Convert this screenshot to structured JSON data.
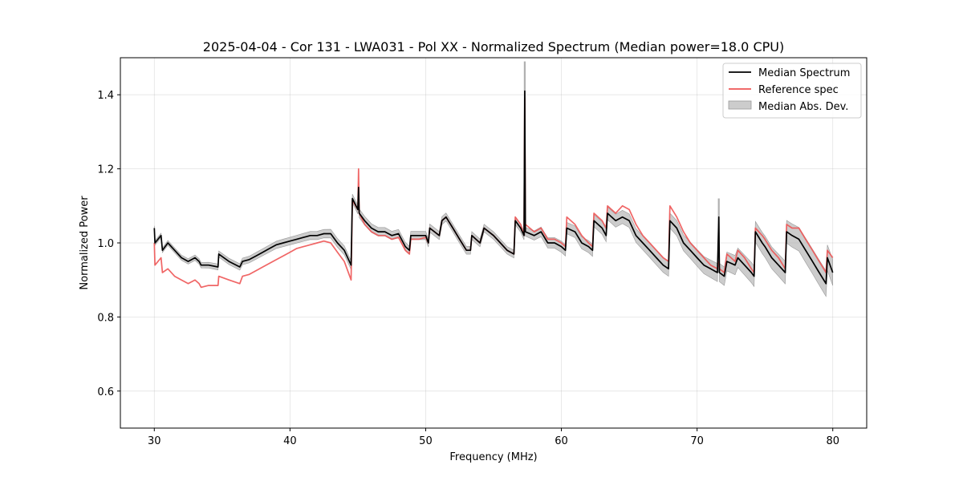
{
  "chart_data": {
    "type": "line",
    "title": "2025-04-04 - Cor 131 - LWA031 - Pol XX - Normalized Spectrum (Median power=18.0 CPU)",
    "xlabel": "Frequency (MHz)",
    "ylabel": "Normalized Power",
    "xlim": [
      27.5,
      82.5
    ],
    "ylim": [
      0.5,
      1.5
    ],
    "x_ticks": [
      30,
      40,
      50,
      60,
      70,
      80
    ],
    "x_tick_labels": [
      "30",
      "40",
      "50",
      "60",
      "70",
      "80"
    ],
    "y_ticks": [
      0.6,
      0.8,
      1.0,
      1.2,
      1.4
    ],
    "y_tick_labels": [
      "0.6",
      "0.8",
      "1.0",
      "1.2",
      "1.4"
    ],
    "grid": true,
    "legend": {
      "placement": "top-right",
      "entries": [
        {
          "label": "Median Spectrum",
          "color": "#000000",
          "kind": "line"
        },
        {
          "label": "Reference spec",
          "color": "#ee5555",
          "kind": "line"
        },
        {
          "label": "Median Abs. Dev.",
          "color": "#b0b0b0",
          "kind": "band"
        }
      ]
    },
    "series": [
      {
        "name": "Median Spectrum",
        "color": "#000000",
        "points": [
          [
            30.0,
            1.04
          ],
          [
            30.05,
            1.0
          ],
          [
            30.5,
            1.02
          ],
          [
            30.6,
            0.98
          ],
          [
            31.0,
            1.0
          ],
          [
            31.5,
            0.98
          ],
          [
            32.0,
            0.96
          ],
          [
            32.5,
            0.95
          ],
          [
            33.0,
            0.96
          ],
          [
            33.3,
            0.95
          ],
          [
            33.45,
            0.94
          ],
          [
            34.0,
            0.94
          ],
          [
            34.7,
            0.935
          ],
          [
            34.75,
            0.97
          ],
          [
            35.5,
            0.95
          ],
          [
            36.3,
            0.935
          ],
          [
            36.5,
            0.95
          ],
          [
            37.0,
            0.955
          ],
          [
            37.5,
            0.965
          ],
          [
            38.0,
            0.975
          ],
          [
            38.5,
            0.985
          ],
          [
            39.0,
            0.995
          ],
          [
            39.5,
            1.0
          ],
          [
            40.0,
            1.005
          ],
          [
            40.5,
            1.01
          ],
          [
            41.0,
            1.015
          ],
          [
            41.5,
            1.02
          ],
          [
            42.0,
            1.02
          ],
          [
            42.5,
            1.025
          ],
          [
            43.0,
            1.025
          ],
          [
            43.5,
            1.0
          ],
          [
            44.0,
            0.98
          ],
          [
            44.5,
            0.94
          ],
          [
            44.6,
            1.12
          ],
          [
            45.0,
            1.09
          ],
          [
            45.05,
            1.15
          ],
          [
            45.1,
            1.08
          ],
          [
            45.5,
            1.06
          ],
          [
            46.0,
            1.04
          ],
          [
            46.5,
            1.03
          ],
          [
            47.0,
            1.03
          ],
          [
            47.5,
            1.02
          ],
          [
            48.0,
            1.025
          ],
          [
            48.5,
            0.99
          ],
          [
            48.8,
            0.98
          ],
          [
            48.9,
            1.02
          ],
          [
            49.5,
            1.02
          ],
          [
            50.0,
            1.02
          ],
          [
            50.2,
            1.0
          ],
          [
            50.3,
            1.04
          ],
          [
            51.0,
            1.02
          ],
          [
            51.2,
            1.06
          ],
          [
            51.5,
            1.07
          ],
          [
            52.0,
            1.04
          ],
          [
            52.5,
            1.01
          ],
          [
            53.0,
            0.98
          ],
          [
            53.3,
            0.98
          ],
          [
            53.4,
            1.02
          ],
          [
            54.0,
            1.0
          ],
          [
            54.3,
            1.04
          ],
          [
            55.0,
            1.02
          ],
          [
            55.5,
            1.0
          ],
          [
            56.0,
            0.98
          ],
          [
            56.5,
            0.97
          ],
          [
            56.6,
            1.06
          ],
          [
            57.0,
            1.04
          ],
          [
            57.25,
            1.02
          ],
          [
            57.3,
            1.41
          ],
          [
            57.35,
            1.03
          ],
          [
            58.0,
            1.02
          ],
          [
            58.5,
            1.03
          ],
          [
            59.0,
            1.0
          ],
          [
            59.5,
            1.0
          ],
          [
            60.0,
            0.99
          ],
          [
            60.3,
            0.98
          ],
          [
            60.4,
            1.04
          ],
          [
            61.0,
            1.03
          ],
          [
            61.5,
            1.0
          ],
          [
            62.0,
            0.99
          ],
          [
            62.3,
            0.98
          ],
          [
            62.4,
            1.06
          ],
          [
            63.0,
            1.04
          ],
          [
            63.3,
            1.02
          ],
          [
            63.4,
            1.08
          ],
          [
            64.0,
            1.06
          ],
          [
            64.5,
            1.07
          ],
          [
            65.0,
            1.06
          ],
          [
            65.5,
            1.02
          ],
          [
            66.0,
            1.0
          ],
          [
            66.5,
            0.98
          ],
          [
            67.0,
            0.96
          ],
          [
            67.5,
            0.94
          ],
          [
            67.9,
            0.93
          ],
          [
            68.0,
            1.06
          ],
          [
            68.5,
            1.04
          ],
          [
            69.0,
            1.0
          ],
          [
            69.5,
            0.98
          ],
          [
            70.0,
            0.96
          ],
          [
            70.5,
            0.94
          ],
          [
            71.0,
            0.93
          ],
          [
            71.5,
            0.92
          ],
          [
            71.6,
            1.07
          ],
          [
            71.65,
            0.92
          ],
          [
            72.0,
            0.91
          ],
          [
            72.2,
            0.95
          ],
          [
            72.8,
            0.94
          ],
          [
            73.0,
            0.96
          ],
          [
            73.5,
            0.94
          ],
          [
            74.0,
            0.92
          ],
          [
            74.2,
            0.91
          ],
          [
            74.3,
            1.03
          ],
          [
            74.8,
            1.0
          ],
          [
            75.0,
            0.99
          ],
          [
            75.5,
            0.96
          ],
          [
            76.0,
            0.94
          ],
          [
            76.5,
            0.92
          ],
          [
            76.6,
            1.03
          ],
          [
            77.0,
            1.02
          ],
          [
            77.5,
            1.01
          ],
          [
            78.0,
            0.98
          ],
          [
            78.5,
            0.95
          ],
          [
            79.0,
            0.92
          ],
          [
            79.5,
            0.89
          ],
          [
            79.6,
            0.96
          ],
          [
            80.0,
            0.92
          ]
        ]
      },
      {
        "name": "Reference spec",
        "color": "#ee5555",
        "points": [
          [
            30.0,
            1.0
          ],
          [
            30.05,
            0.94
          ],
          [
            30.5,
            0.96
          ],
          [
            30.6,
            0.92
          ],
          [
            31.0,
            0.93
          ],
          [
            31.5,
            0.91
          ],
          [
            32.0,
            0.9
          ],
          [
            32.5,
            0.89
          ],
          [
            33.0,
            0.9
          ],
          [
            33.3,
            0.89
          ],
          [
            33.45,
            0.88
          ],
          [
            34.0,
            0.885
          ],
          [
            34.7,
            0.885
          ],
          [
            34.75,
            0.91
          ],
          [
            35.5,
            0.9
          ],
          [
            36.3,
            0.89
          ],
          [
            36.5,
            0.91
          ],
          [
            37.0,
            0.915
          ],
          [
            37.5,
            0.925
          ],
          [
            38.0,
            0.935
          ],
          [
            38.5,
            0.945
          ],
          [
            39.0,
            0.955
          ],
          [
            39.5,
            0.965
          ],
          [
            40.0,
            0.975
          ],
          [
            40.5,
            0.985
          ],
          [
            41.0,
            0.99
          ],
          [
            41.5,
            0.995
          ],
          [
            42.0,
            1.0
          ],
          [
            42.5,
            1.005
          ],
          [
            43.0,
            1.0
          ],
          [
            43.5,
            0.975
          ],
          [
            44.0,
            0.95
          ],
          [
            44.5,
            0.9
          ],
          [
            44.6,
            1.115
          ],
          [
            45.0,
            1.09
          ],
          [
            45.05,
            1.2
          ],
          [
            45.1,
            1.08
          ],
          [
            45.5,
            1.05
          ],
          [
            46.0,
            1.03
          ],
          [
            46.5,
            1.02
          ],
          [
            47.0,
            1.02
          ],
          [
            47.5,
            1.01
          ],
          [
            48.0,
            1.015
          ],
          [
            48.5,
            0.98
          ],
          [
            48.8,
            0.97
          ],
          [
            48.9,
            1.01
          ],
          [
            49.5,
            1.01
          ],
          [
            50.0,
            1.015
          ],
          [
            50.2,
            1.0
          ],
          [
            50.3,
            1.04
          ],
          [
            51.0,
            1.02
          ],
          [
            51.2,
            1.06
          ],
          [
            51.5,
            1.07
          ],
          [
            52.0,
            1.04
          ],
          [
            52.5,
            1.01
          ],
          [
            53.0,
            0.98
          ],
          [
            53.3,
            0.98
          ],
          [
            53.4,
            1.02
          ],
          [
            54.0,
            1.0
          ],
          [
            54.3,
            1.04
          ],
          [
            55.0,
            1.02
          ],
          [
            55.5,
            1.0
          ],
          [
            56.0,
            0.98
          ],
          [
            56.5,
            0.97
          ],
          [
            56.6,
            1.07
          ],
          [
            57.0,
            1.05
          ],
          [
            57.25,
            1.02
          ],
          [
            57.3,
            1.39
          ],
          [
            57.35,
            1.05
          ],
          [
            58.0,
            1.03
          ],
          [
            58.5,
            1.04
          ],
          [
            59.0,
            1.01
          ],
          [
            59.5,
            1.01
          ],
          [
            60.0,
            1.0
          ],
          [
            60.3,
            0.99
          ],
          [
            60.4,
            1.07
          ],
          [
            61.0,
            1.05
          ],
          [
            61.5,
            1.02
          ],
          [
            62.0,
            1.0
          ],
          [
            62.3,
            0.99
          ],
          [
            62.4,
            1.08
          ],
          [
            63.0,
            1.06
          ],
          [
            63.3,
            1.04
          ],
          [
            63.4,
            1.1
          ],
          [
            64.0,
            1.08
          ],
          [
            64.5,
            1.1
          ],
          [
            65.0,
            1.09
          ],
          [
            65.5,
            1.05
          ],
          [
            66.0,
            1.02
          ],
          [
            66.5,
            1.0
          ],
          [
            67.0,
            0.98
          ],
          [
            67.5,
            0.96
          ],
          [
            67.9,
            0.95
          ],
          [
            68.0,
            1.1
          ],
          [
            68.5,
            1.07
          ],
          [
            69.0,
            1.03
          ],
          [
            69.5,
            1.0
          ],
          [
            70.0,
            0.98
          ],
          [
            70.5,
            0.96
          ],
          [
            71.0,
            0.94
          ],
          [
            71.5,
            0.93
          ],
          [
            71.6,
            0.95
          ],
          [
            71.65,
            0.93
          ],
          [
            72.0,
            0.92
          ],
          [
            72.2,
            0.97
          ],
          [
            72.8,
            0.95
          ],
          [
            73.0,
            0.98
          ],
          [
            73.5,
            0.96
          ],
          [
            74.0,
            0.93
          ],
          [
            74.2,
            0.92
          ],
          [
            74.3,
            1.04
          ],
          [
            74.8,
            1.02
          ],
          [
            75.0,
            1.01
          ],
          [
            75.5,
            0.98
          ],
          [
            76.0,
            0.96
          ],
          [
            76.5,
            0.93
          ],
          [
            76.6,
            1.05
          ],
          [
            77.0,
            1.04
          ],
          [
            77.5,
            1.04
          ],
          [
            78.0,
            1.01
          ],
          [
            78.5,
            0.98
          ],
          [
            79.0,
            0.95
          ],
          [
            79.5,
            0.92
          ],
          [
            79.6,
            0.98
          ],
          [
            80.0,
            0.96
          ]
        ]
      }
    ],
    "band": {
      "name": "Median Abs. Dev.",
      "color": "#b0b0b0",
      "half_width": [
        [
          30.0,
          0.006
        ],
        [
          44.0,
          0.012
        ],
        [
          56.0,
          0.01
        ],
        [
          60.0,
          0.015
        ],
        [
          68.0,
          0.02
        ],
        [
          80.0,
          0.035
        ]
      ],
      "spikes": [
        {
          "x": 57.3,
          "low": 1.02,
          "high": 1.49
        },
        {
          "x": 71.6,
          "low": 0.92,
          "high": 1.12
        }
      ]
    }
  }
}
